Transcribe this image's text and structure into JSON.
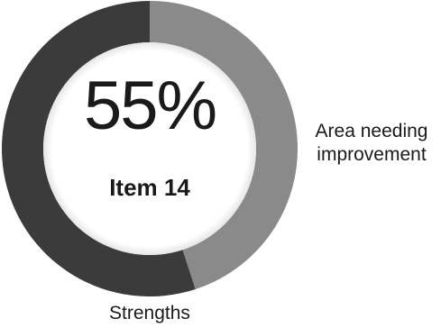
{
  "chart_data": {
    "type": "pie",
    "style": "donut",
    "center_value": "55%",
    "center_label": "Item 14",
    "slices": [
      {
        "label": "Strengths",
        "value": 55,
        "color": "#3b3b3b"
      },
      {
        "label": "Area needing improvement",
        "value": 45,
        "color": "#8a8a8a"
      }
    ],
    "labels": {
      "improvement_line1": "Area needing",
      "improvement_line2": "improvement",
      "strengths": "Strengths"
    },
    "legend": "none"
  }
}
